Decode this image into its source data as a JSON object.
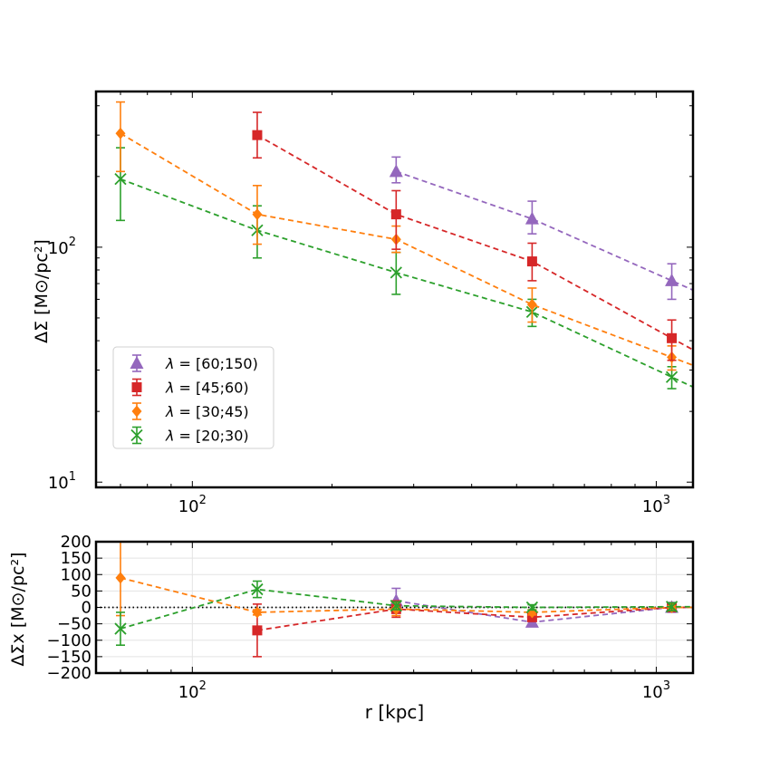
{
  "chart_data": [
    {
      "type": "scatter",
      "panel": "top",
      "xlabel": "",
      "ylabel": "ΔΣ [M⊙/pc²]",
      "xscale": "log",
      "yscale": "log",
      "xlim": [
        62,
        1200
      ],
      "ylim": [
        9.5,
        460
      ],
      "x_ticks": [
        {
          "value": 100,
          "base": "10",
          "exp": "2"
        },
        {
          "value": 1000,
          "base": "10",
          "exp": "3"
        }
      ],
      "y_ticks": [
        {
          "value": 10,
          "base": "10",
          "exp": "1"
        },
        {
          "value": 100,
          "base": "10",
          "exp": "2"
        }
      ],
      "grid": false,
      "legend_position": "lower-left",
      "series": [
        {
          "name": "λ = [60;150)",
          "label_var": "λ",
          "label_range": " = [60;150)",
          "color": "#9467bd",
          "marker": "triangle",
          "x": [
            275,
            540,
            1080
          ],
          "y": [
            210,
            132,
            72
          ],
          "err_low": [
            22,
            18,
            12
          ],
          "err_high": [
            32,
            25,
            13
          ]
        },
        {
          "name": "λ = [45;60)",
          "label_var": "λ",
          "label_range": " = [45;60)",
          "color": "#d62728",
          "marker": "square",
          "x": [
            138,
            275,
            540,
            1080
          ],
          "y": [
            300,
            138,
            87,
            41
          ],
          "err_low": [
            60,
            40,
            15,
            8
          ],
          "err_high": [
            75,
            36,
            17,
            8
          ]
        },
        {
          "name": "λ = [30;45)",
          "label_var": "λ",
          "label_range": " = [30;45)",
          "color": "#ff7f0e",
          "marker": "diamond",
          "x": [
            70,
            138,
            275,
            540,
            1080
          ],
          "y": [
            305,
            138,
            108,
            57,
            34
          ],
          "err_low": [
            95,
            35,
            13,
            9,
            4
          ],
          "err_high": [
            110,
            45,
            15,
            10,
            4
          ]
        },
        {
          "name": "λ = [20;30)",
          "label_var": "λ",
          "label_range": " = [20;30)",
          "color": "#2ca02c",
          "marker": "x",
          "x": [
            70,
            138,
            275,
            540,
            1080
          ],
          "y": [
            195,
            118,
            78,
            53,
            28
          ],
          "err_low": [
            65,
            28,
            15,
            7,
            3
          ],
          "err_high": [
            70,
            32,
            17,
            7,
            3
          ]
        }
      ]
    },
    {
      "type": "scatter",
      "panel": "bottom",
      "xlabel": "r [kpc]",
      "ylabel": "ΔΣx [M⊙/pc²]",
      "xscale": "log",
      "yscale": "linear",
      "xlim": [
        62,
        1200
      ],
      "ylim": [
        -200,
        200
      ],
      "x_ticks": [
        {
          "value": 100,
          "base": "10",
          "exp": "2"
        },
        {
          "value": 1000,
          "base": "10",
          "exp": "3"
        }
      ],
      "y_ticks": [
        -200,
        -150,
        -100,
        -50,
        0,
        50,
        100,
        150,
        200
      ],
      "grid": true,
      "reference_line": 0,
      "series": [
        {
          "name": "λ = [60;150)",
          "color": "#9467bd",
          "marker": "triangle",
          "x": [
            275,
            540,
            1080
          ],
          "y": [
            20,
            -45,
            0
          ],
          "err": [
            38,
            10,
            15
          ]
        },
        {
          "name": "λ = [45;60)",
          "color": "#d62728",
          "marker": "square",
          "x": [
            138,
            275,
            540,
            1080
          ],
          "y": [
            -70,
            -5,
            -30,
            0
          ],
          "err": [
            80,
            25,
            10,
            8
          ]
        },
        {
          "name": "λ = [30;45)",
          "color": "#ff7f0e",
          "marker": "diamond",
          "x": [
            70,
            138,
            275,
            540,
            1080
          ],
          "y": [
            90,
            -15,
            -5,
            -15,
            0
          ],
          "err": [
            115,
            8,
            20,
            8,
            5
          ]
        },
        {
          "name": "λ = [20;30)",
          "color": "#2ca02c",
          "marker": "x",
          "x": [
            70,
            138,
            275,
            540,
            1080
          ],
          "y": [
            -65,
            55,
            5,
            0,
            2
          ],
          "err": [
            50,
            25,
            12,
            8,
            12
          ]
        }
      ]
    }
  ]
}
